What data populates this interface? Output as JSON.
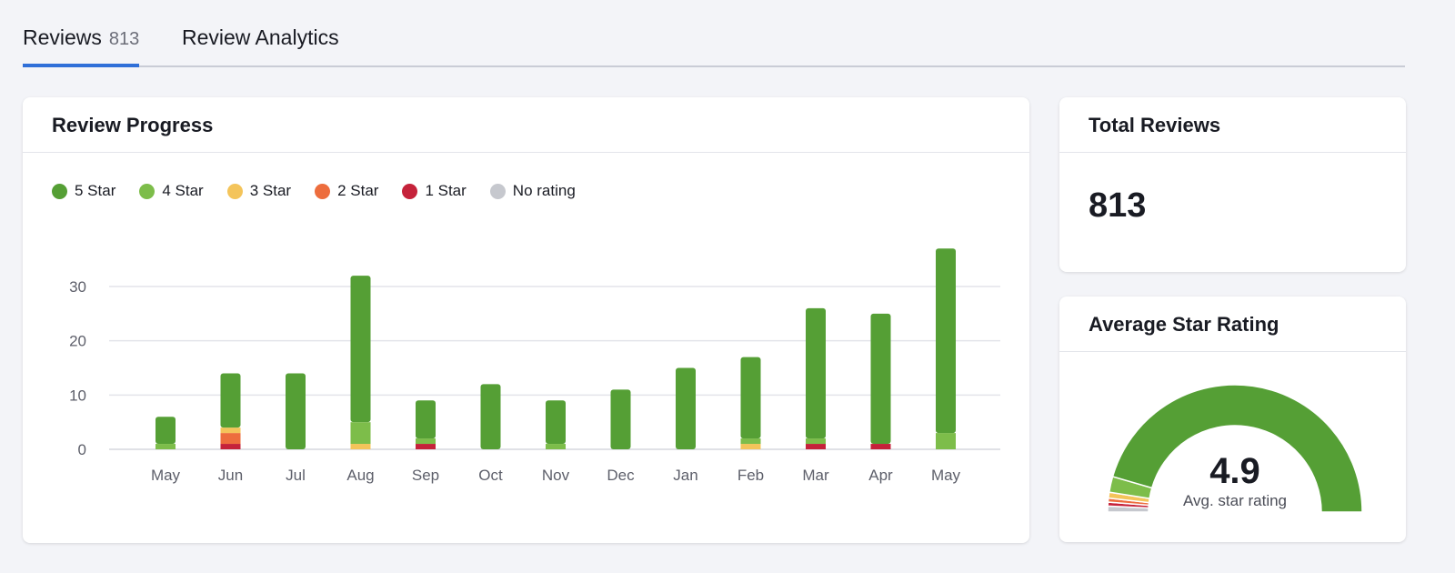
{
  "tabs": [
    {
      "label": "Reviews",
      "count": "813"
    },
    {
      "label": "Review Analytics"
    }
  ],
  "colors": {
    "5 Star": "#559f35",
    "4 Star": "#7dbd4a",
    "3 Star": "#f4c45a",
    "2 Star": "#ed6d3d",
    "1 Star": "#c5223a",
    "No rating": "#c6c8ce",
    "accent": "#2f6fd8"
  },
  "progress": {
    "title": "Review Progress"
  },
  "chart_data": {
    "type": "bar",
    "stacked": true,
    "grid": true,
    "legend": "top-left",
    "categories": [
      "May",
      "Jun",
      "Jul",
      "Aug",
      "Sep",
      "Oct",
      "Nov",
      "Dec",
      "Jan",
      "Feb",
      "Mar",
      "Apr",
      "May"
    ],
    "yticks": [
      0,
      10,
      20,
      30
    ],
    "ylim": [
      0,
      38
    ],
    "series": [
      {
        "name": "1 Star",
        "values": [
          0,
          1,
          0,
          0,
          1,
          0,
          0,
          0,
          0,
          0,
          1,
          1,
          0
        ]
      },
      {
        "name": "2 Star",
        "values": [
          0,
          2,
          0,
          0,
          0,
          0,
          0,
          0,
          0,
          0,
          0,
          0,
          0
        ]
      },
      {
        "name": "3 Star",
        "values": [
          0,
          1,
          0,
          1,
          0,
          0,
          0,
          0,
          0,
          1,
          0,
          0,
          0
        ]
      },
      {
        "name": "4 Star",
        "values": [
          1,
          0,
          0,
          4,
          1,
          0,
          1,
          0,
          0,
          1,
          1,
          0,
          3
        ]
      },
      {
        "name": "5 Star",
        "values": [
          5,
          10,
          14,
          27,
          7,
          12,
          8,
          11,
          15,
          15,
          24,
          24,
          34
        ]
      },
      {
        "name": "No rating",
        "values": [
          0,
          0,
          0,
          0,
          0,
          0,
          0,
          0,
          0,
          0,
          0,
          0,
          0
        ]
      }
    ]
  },
  "legend_order": [
    "5 Star",
    "4 Star",
    "3 Star",
    "2 Star",
    "1 Star",
    "No rating"
  ],
  "total": {
    "title": "Total Reviews",
    "value": "813"
  },
  "average": {
    "title": "Average Star Rating",
    "value": "4.9",
    "label": "Avg. star rating",
    "gauge_share_percent": {
      "No rating": 1.5,
      "1 Star": 1,
      "2 Star": 1,
      "3 Star": 1.5,
      "4 Star": 4,
      "5 Star": 91
    }
  }
}
